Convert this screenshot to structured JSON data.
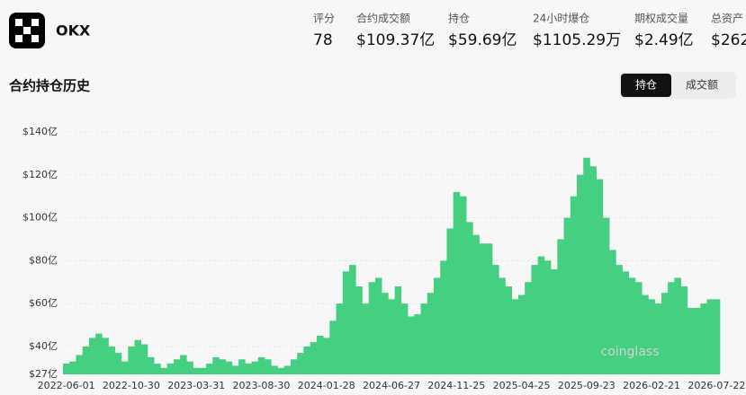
{
  "header": {
    "name": "OKX",
    "stats": [
      {
        "label": "评分",
        "value": "78"
      },
      {
        "label": "合约成交额",
        "value": "$109.37亿"
      },
      {
        "label": "持仓",
        "value": "$59.69亿"
      },
      {
        "label": "24小时爆仓",
        "value": "$1105.29万"
      },
      {
        "label": "期权成交量",
        "value": "$2.49亿"
      },
      {
        "label": "总资产",
        "value": "$262"
      }
    ]
  },
  "section": {
    "title": "合约持仓历史",
    "tabs": [
      "持仓",
      "成交额"
    ]
  },
  "chart_data": {
    "type": "bar",
    "color": "#45cf80",
    "watermark": "coinglass",
    "grid": true,
    "categories": [
      "2022-06-01",
      null,
      null,
      null,
      null,
      null,
      null,
      null,
      null,
      null,
      "2022-10-30",
      null,
      null,
      null,
      null,
      null,
      null,
      null,
      null,
      null,
      "2023-03-31",
      null,
      null,
      null,
      null,
      null,
      null,
      null,
      null,
      null,
      "2023-08-30",
      null,
      null,
      null,
      null,
      null,
      null,
      null,
      null,
      null,
      "2024-01-28",
      null,
      null,
      null,
      null,
      null,
      null,
      null,
      null,
      null,
      "2024-06-27",
      null,
      null,
      null,
      null,
      null,
      null,
      null,
      null,
      null,
      "2024-11-25",
      null,
      null,
      null,
      null,
      null,
      null,
      null,
      null,
      null,
      "2025-04-25",
      null,
      null,
      null,
      null,
      null,
      null,
      null,
      null,
      null,
      "2025-09-23",
      null,
      null,
      null,
      null,
      null,
      null,
      null,
      null,
      null,
      "2026-02-21",
      null,
      null,
      null,
      null,
      null,
      null,
      null,
      null,
      null,
      "2026-07-22"
    ],
    "values": [
      32,
      33,
      36,
      40,
      44,
      46,
      44,
      40,
      37,
      33,
      40,
      43,
      41,
      35,
      32,
      30,
      32,
      34,
      36,
      33,
      30,
      30,
      32,
      35,
      34,
      33,
      31,
      34,
      32,
      33,
      35,
      34,
      31,
      30,
      31,
      34,
      37,
      40,
      42,
      45,
      44,
      52,
      60,
      75,
      78,
      68,
      60,
      70,
      72,
      65,
      62,
      68,
      60,
      54,
      55,
      60,
      65,
      72,
      80,
      95,
      112,
      110,
      98,
      92,
      88,
      88,
      78,
      72,
      68,
      62,
      64,
      70,
      78,
      82,
      80,
      76,
      90,
      100,
      110,
      120,
      128,
      124,
      118,
      100,
      85,
      78,
      75,
      72,
      70,
      64,
      62,
      60,
      65,
      70,
      72,
      68,
      58,
      58,
      60,
      62,
      62
    ],
    "ylim": [
      27,
      140
    ],
    "yticks": [
      {
        "value": 27,
        "label": "$27亿"
      },
      {
        "value": 40,
        "label": "$40亿"
      },
      {
        "value": 60,
        "label": "$60亿"
      },
      {
        "value": 80,
        "label": "$80亿"
      },
      {
        "value": 100,
        "label": "$100亿"
      },
      {
        "value": 120,
        "label": "$120亿"
      },
      {
        "value": 140,
        "label": "$140亿"
      }
    ]
  }
}
